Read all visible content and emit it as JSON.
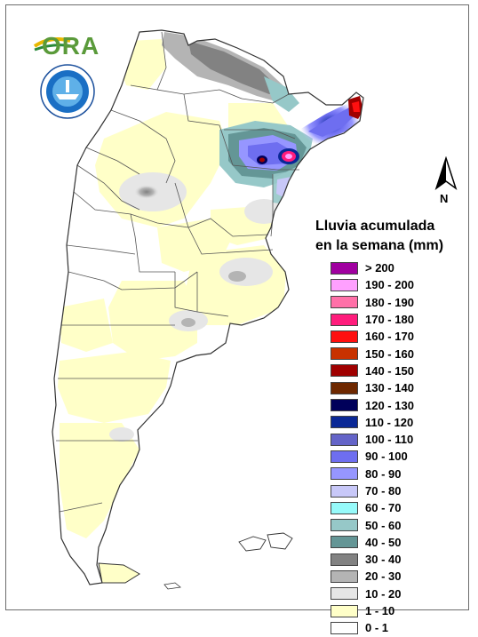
{
  "legend": {
    "title_line1": "Lluvia acumulada",
    "title_line2": "en la semana (mm)",
    "items": [
      {
        "label": "> 200",
        "color": "#a000a0"
      },
      {
        "label": "190 - 200",
        "color": "#ffa0ff"
      },
      {
        "label": "180 - 190",
        "color": "#ff70a8"
      },
      {
        "label": "170 - 180",
        "color": "#ff1c7c"
      },
      {
        "label": "160 - 170",
        "color": "#ff1010"
      },
      {
        "label": "150 - 160",
        "color": "#c83200"
      },
      {
        "label": "140 - 150",
        "color": "#a00000"
      },
      {
        "label": "130 - 140",
        "color": "#6e2800"
      },
      {
        "label": "120 - 130",
        "color": "#00005a"
      },
      {
        "label": "110 - 120",
        "color": "#0a2896"
      },
      {
        "label": "100 - 110",
        "color": "#6464c8"
      },
      {
        "label": "90 - 100",
        "color": "#6e6ef0"
      },
      {
        "label": "80 - 90",
        "color": "#9696ff"
      },
      {
        "label": "70 - 80",
        "color": "#c8c8f8"
      },
      {
        "label": "60 - 70",
        "color": "#96fafa"
      },
      {
        "label": "50 - 60",
        "color": "#96c8c8"
      },
      {
        "label": "40 - 50",
        "color": "#649696"
      },
      {
        "label": "30 - 40",
        "color": "#828282"
      },
      {
        "label": "20 - 30",
        "color": "#b4b4b4"
      },
      {
        "label": "10 - 20",
        "color": "#e6e6e6"
      },
      {
        "label": "1 - 10",
        "color": "#ffffc8"
      },
      {
        "label": "0 - 1",
        "color": "#ffffff"
      }
    ]
  },
  "logos": {
    "ora_text": "ORA",
    "seal_icon": "seal-emblem-icon"
  },
  "north": {
    "label": "N",
    "icon": "north-arrow-icon"
  }
}
